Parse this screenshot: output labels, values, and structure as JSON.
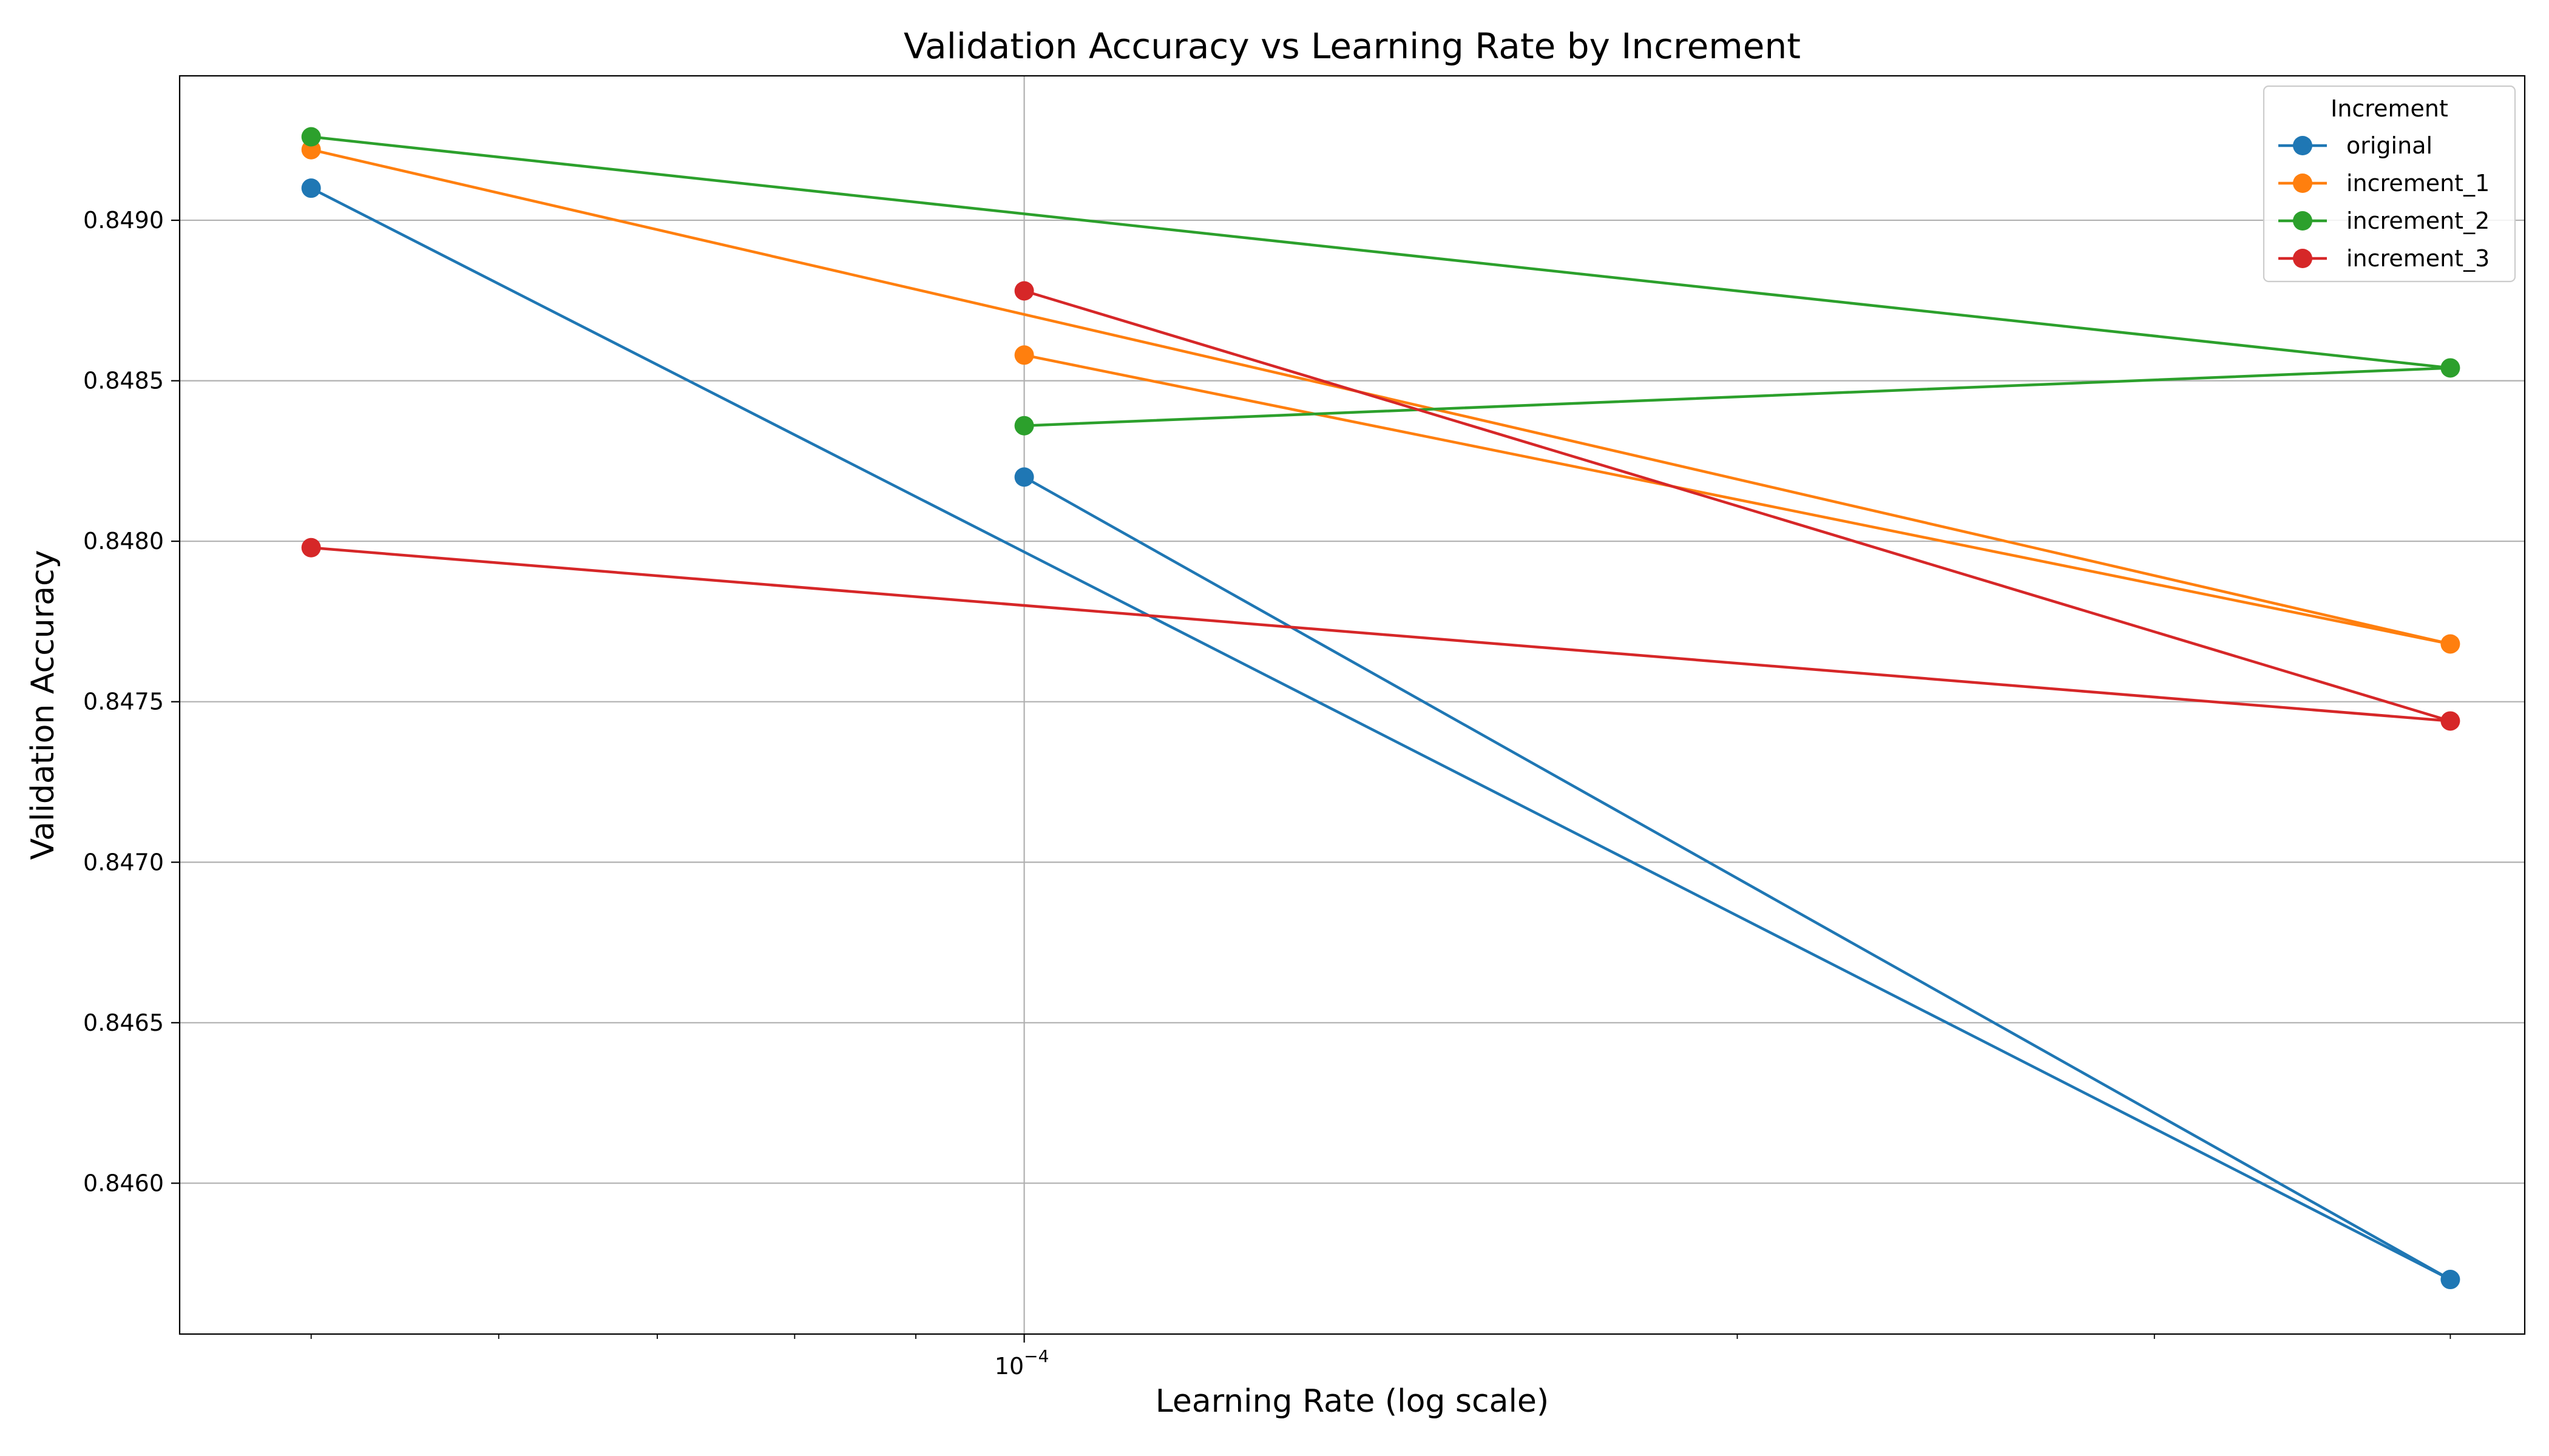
{
  "chart_data": {
    "type": "line",
    "title": "Validation Accuracy vs Learning Rate by Increment",
    "xlabel": "Learning Rate (log scale)",
    "ylabel": "Validation Accuracy",
    "x_scale": "log",
    "xlim": [
      4.4e-05,
      0.00043
    ],
    "ylim": [
      0.84553,
      0.84945
    ],
    "x_major_ticks": [
      {
        "value": 0.0001,
        "base": "10",
        "exponent": "−4"
      }
    ],
    "x_minor_ticks": [
      5e-05,
      6e-05,
      7e-05,
      8e-05,
      9e-05,
      0.0002,
      0.0003,
      0.0004
    ],
    "y_ticks": [
      {
        "value": 0.846,
        "label": "0.8460"
      },
      {
        "value": 0.8465,
        "label": "0.8465"
      },
      {
        "value": 0.847,
        "label": "0.8470"
      },
      {
        "value": 0.8475,
        "label": "0.8475"
      },
      {
        "value": 0.848,
        "label": "0.8480"
      },
      {
        "value": 0.8485,
        "label": "0.8485"
      },
      {
        "value": 0.849,
        "label": "0.8490"
      }
    ],
    "grid": true,
    "legend": {
      "title": "Increment",
      "position": "top-right"
    },
    "series": [
      {
        "name": "original",
        "color": "#1f77b4",
        "x": [
          5e-05,
          0.0004,
          0.0001
        ],
        "y": [
          0.8491,
          0.8457,
          0.8482
        ]
      },
      {
        "name": "increment_1",
        "color": "#ff7f0e",
        "x": [
          5e-05,
          0.0004,
          0.0001
        ],
        "y": [
          0.84922,
          0.84768,
          0.84858
        ]
      },
      {
        "name": "increment_2",
        "color": "#2ca02c",
        "x": [
          5e-05,
          0.0004,
          0.0001
        ],
        "y": [
          0.84926,
          0.84854,
          0.84836
        ]
      },
      {
        "name": "increment_3",
        "color": "#d62728",
        "x": [
          0.0001,
          0.0004,
          5e-05
        ],
        "y": [
          0.84878,
          0.84744,
          0.84798
        ]
      }
    ]
  }
}
